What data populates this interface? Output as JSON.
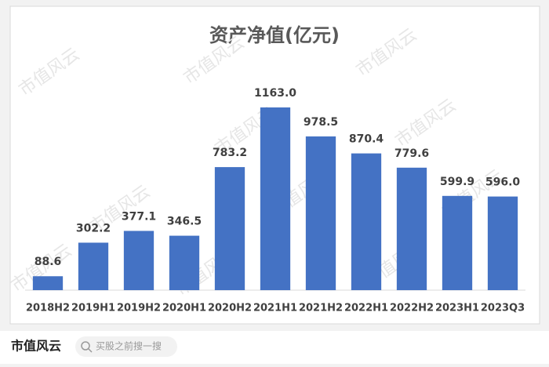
{
  "chart_data": {
    "type": "bar",
    "title": "资产净值(亿元)",
    "categories": [
      "2018H2",
      "2019H1",
      "2019H2",
      "2020H1",
      "2020H2",
      "2021H1",
      "2021H2",
      "2022H1",
      "2022H2",
      "2023H1",
      "2023Q3"
    ],
    "values": [
      88.6,
      302.2,
      377.1,
      346.5,
      783.2,
      1163.0,
      978.5,
      870.4,
      779.6,
      599.9,
      596.0
    ],
    "value_labels": [
      "88.6",
      "302.2",
      "377.1",
      "346.5",
      "783.2",
      "1163.0",
      "978.5",
      "870.4",
      "779.6",
      "599.9",
      "596.0"
    ],
    "color": "#4472c4"
  },
  "watermark": "市值风云",
  "footer": {
    "logo": "市值风云",
    "search": "买股之前搜一搜"
  }
}
